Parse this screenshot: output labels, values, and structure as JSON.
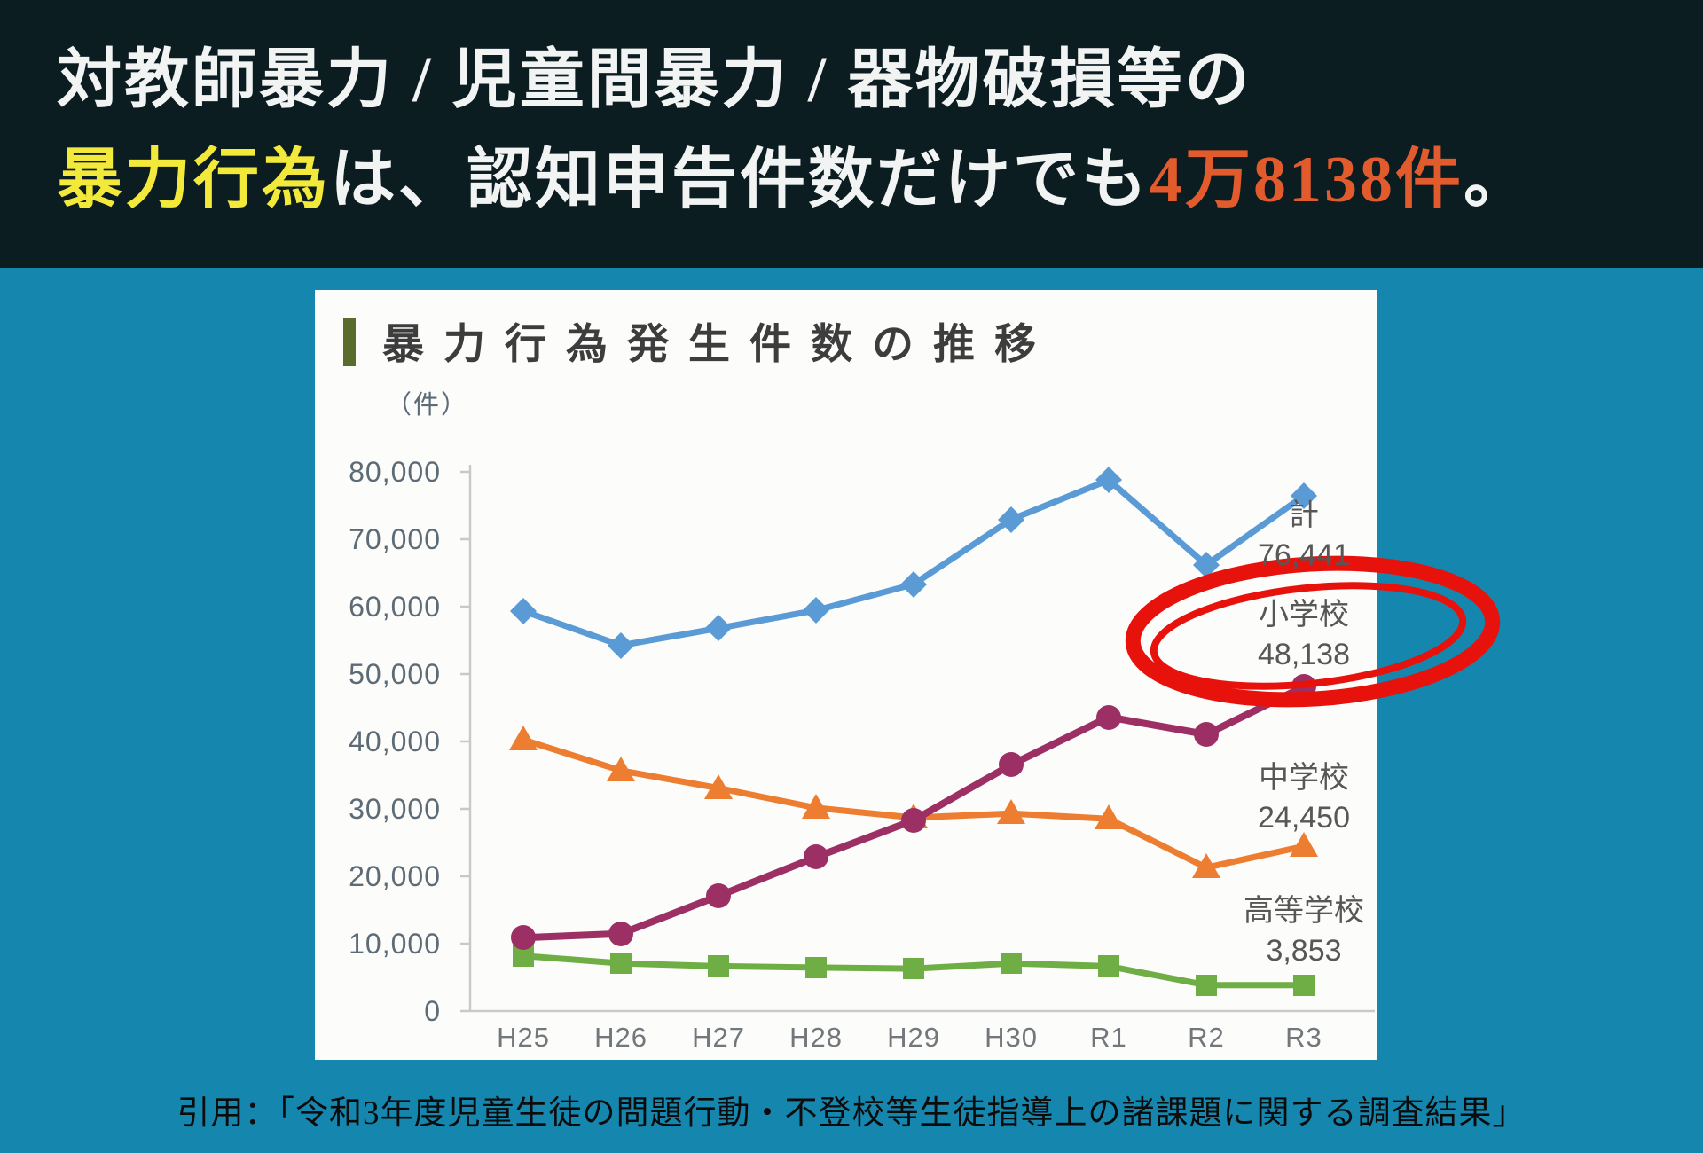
{
  "header": {
    "line1": "対教師暴力 / 児童間暴力 / 器物破損等の",
    "line2_highlight": "暴力行為",
    "line2_mid": "は、認知申告件数だけでも",
    "line2_number": "4万8138件",
    "line2_end": "。"
  },
  "footer": {
    "citation": "引用：「令和3年度児童生徒の問題行動・不登校等生徒指導上の諸課題に関する調査結果」"
  },
  "colors": {
    "header_bg": "#0c1d22",
    "header_text": "#f2f4f4",
    "highlight_yellow": "#f2e93a",
    "number_orange": "#e25b2d",
    "page_bg": "#1586ad",
    "card_bg": "#fcfcfb",
    "title_bar_olive": "#5a6c2d",
    "title_text": "#3d3d3d",
    "axis_tick_text": "#5d6b77",
    "x_tick_text": "#72777b",
    "series_label_text": "#575757",
    "axis_line": "#c9c9c9",
    "annotation_red": "#e8120c"
  },
  "chart_data": {
    "type": "line",
    "title": "暴力行為発生件数の推移",
    "unit_label": "（件）",
    "x": [
      "H25",
      "H26",
      "H27",
      "H28",
      "H29",
      "H30",
      "R1",
      "R2",
      "R3"
    ],
    "ylim": [
      0,
      80000
    ],
    "y_ticks": [
      "80,000",
      "70,000",
      "60,000",
      "50,000",
      "40,000",
      "30,000",
      "20,000",
      "10,000",
      "0"
    ],
    "grid": false,
    "legend_position": "right-of-last-point",
    "series": [
      {
        "name": "計",
        "end_label": "76,441",
        "color": "#5b9bd5",
        "marker": "diamond",
        "values": [
          59345,
          54246,
          56806,
          59444,
          63325,
          72940,
          78787,
          66201,
          76441
        ]
      },
      {
        "name": "小学校",
        "end_label": "48,138",
        "color": "#9c3064",
        "marker": "circle",
        "highlighted": true,
        "values": [
          10896,
          11472,
          17078,
          22841,
          28315,
          36536,
          43614,
          41056,
          48138
        ]
      },
      {
        "name": "中学校",
        "end_label": "24,450",
        "color": "#ed7d31",
        "marker": "triangle",
        "values": [
          40246,
          35683,
          33073,
          30148,
          28702,
          29320,
          28518,
          21293,
          24450
        ]
      },
      {
        "name": "高等学校",
        "end_label": "3,853",
        "color": "#6fad45",
        "marker": "square",
        "values": [
          8203,
          7091,
          6655,
          6455,
          6308,
          7084,
          6655,
          3852,
          3853
        ]
      }
    ]
  }
}
